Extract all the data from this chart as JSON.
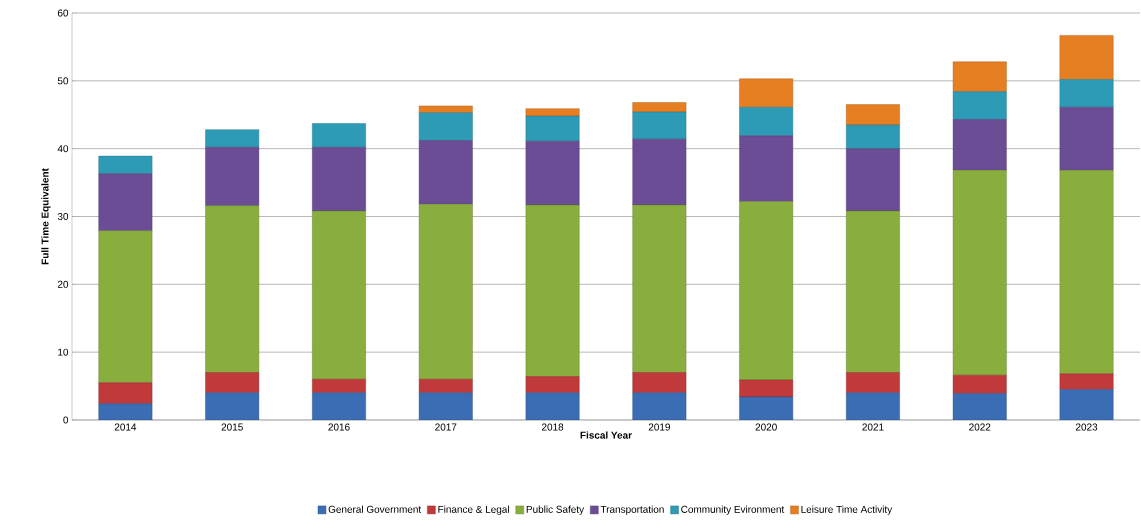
{
  "chart_data": {
    "type": "bar",
    "stacked": true,
    "xlabel": "Fiscal Year",
    "ylabel": "Full Time Equivalent",
    "categories": [
      "2014",
      "2015",
      "2016",
      "2017",
      "2018",
      "2019",
      "2020",
      "2021",
      "2022",
      "2023"
    ],
    "series": [
      {
        "name": "General Government",
        "color": "#3a6db3",
        "values": [
          2.4,
          4,
          4,
          4,
          4,
          4,
          3.4,
          4,
          3.9,
          4.5
        ]
      },
      {
        "name": "Finance & Legal",
        "color": "#c0393b",
        "values": [
          3.1,
          3,
          2,
          2,
          2.4,
          3,
          2.5,
          3,
          2.7,
          2.3
        ]
      },
      {
        "name": "Public Safety",
        "color": "#8aae3e",
        "values": [
          22.4,
          24.6,
          24.8,
          25.8,
          25.3,
          24.7,
          26.3,
          23.8,
          30.2,
          30
        ]
      },
      {
        "name": "Transportation",
        "color": "#6a4d94",
        "values": [
          8.4,
          8.6,
          9.4,
          9.4,
          9.4,
          9.7,
          9.7,
          9.2,
          7.5,
          9.3
        ]
      },
      {
        "name": "Community Evironment",
        "color": "#2e9bb6",
        "values": [
          2.6,
          2.6,
          3.5,
          4.1,
          3.7,
          4,
          4.2,
          3.5,
          4.1,
          4.1
        ]
      },
      {
        "name": "Leisure Time Activity",
        "color": "#e67e22",
        "values": [
          0,
          0,
          0,
          1.0,
          1.1,
          1.4,
          4.2,
          3,
          4.4,
          6.5
        ]
      }
    ],
    "ylim": [
      0,
      60
    ],
    "yticks": [
      0,
      10,
      20,
      30,
      40,
      50,
      60
    ],
    "grid": "y",
    "legend": "bottom"
  }
}
